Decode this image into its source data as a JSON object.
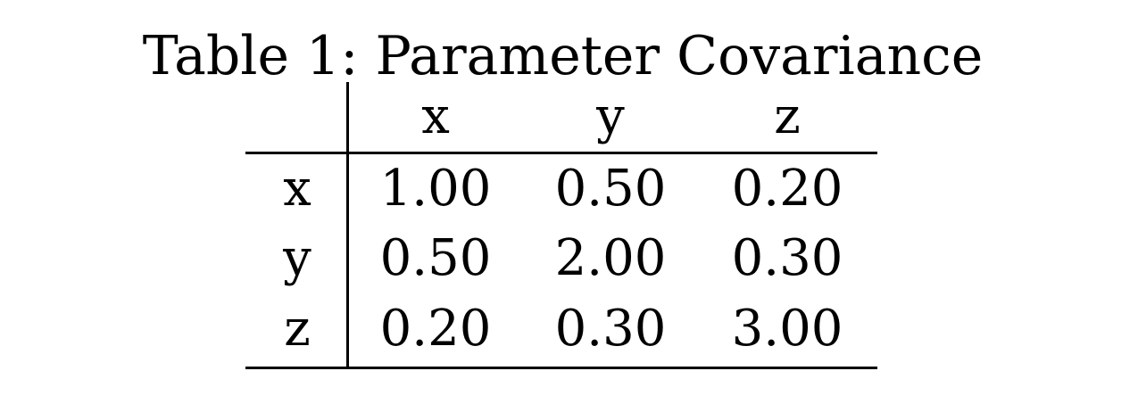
{
  "table": {
    "caption": "Table 1: Parameter Covariance",
    "header": [
      "x",
      "y",
      "z"
    ],
    "rows": [
      {
        "label": "x",
        "values": [
          "1.00",
          "0.50",
          "0.20"
        ]
      },
      {
        "label": "y",
        "values": [
          "0.50",
          "2.00",
          "0.30"
        ]
      },
      {
        "label": "z",
        "values": [
          "0.20",
          "0.30",
          "3.00"
        ]
      }
    ]
  }
}
